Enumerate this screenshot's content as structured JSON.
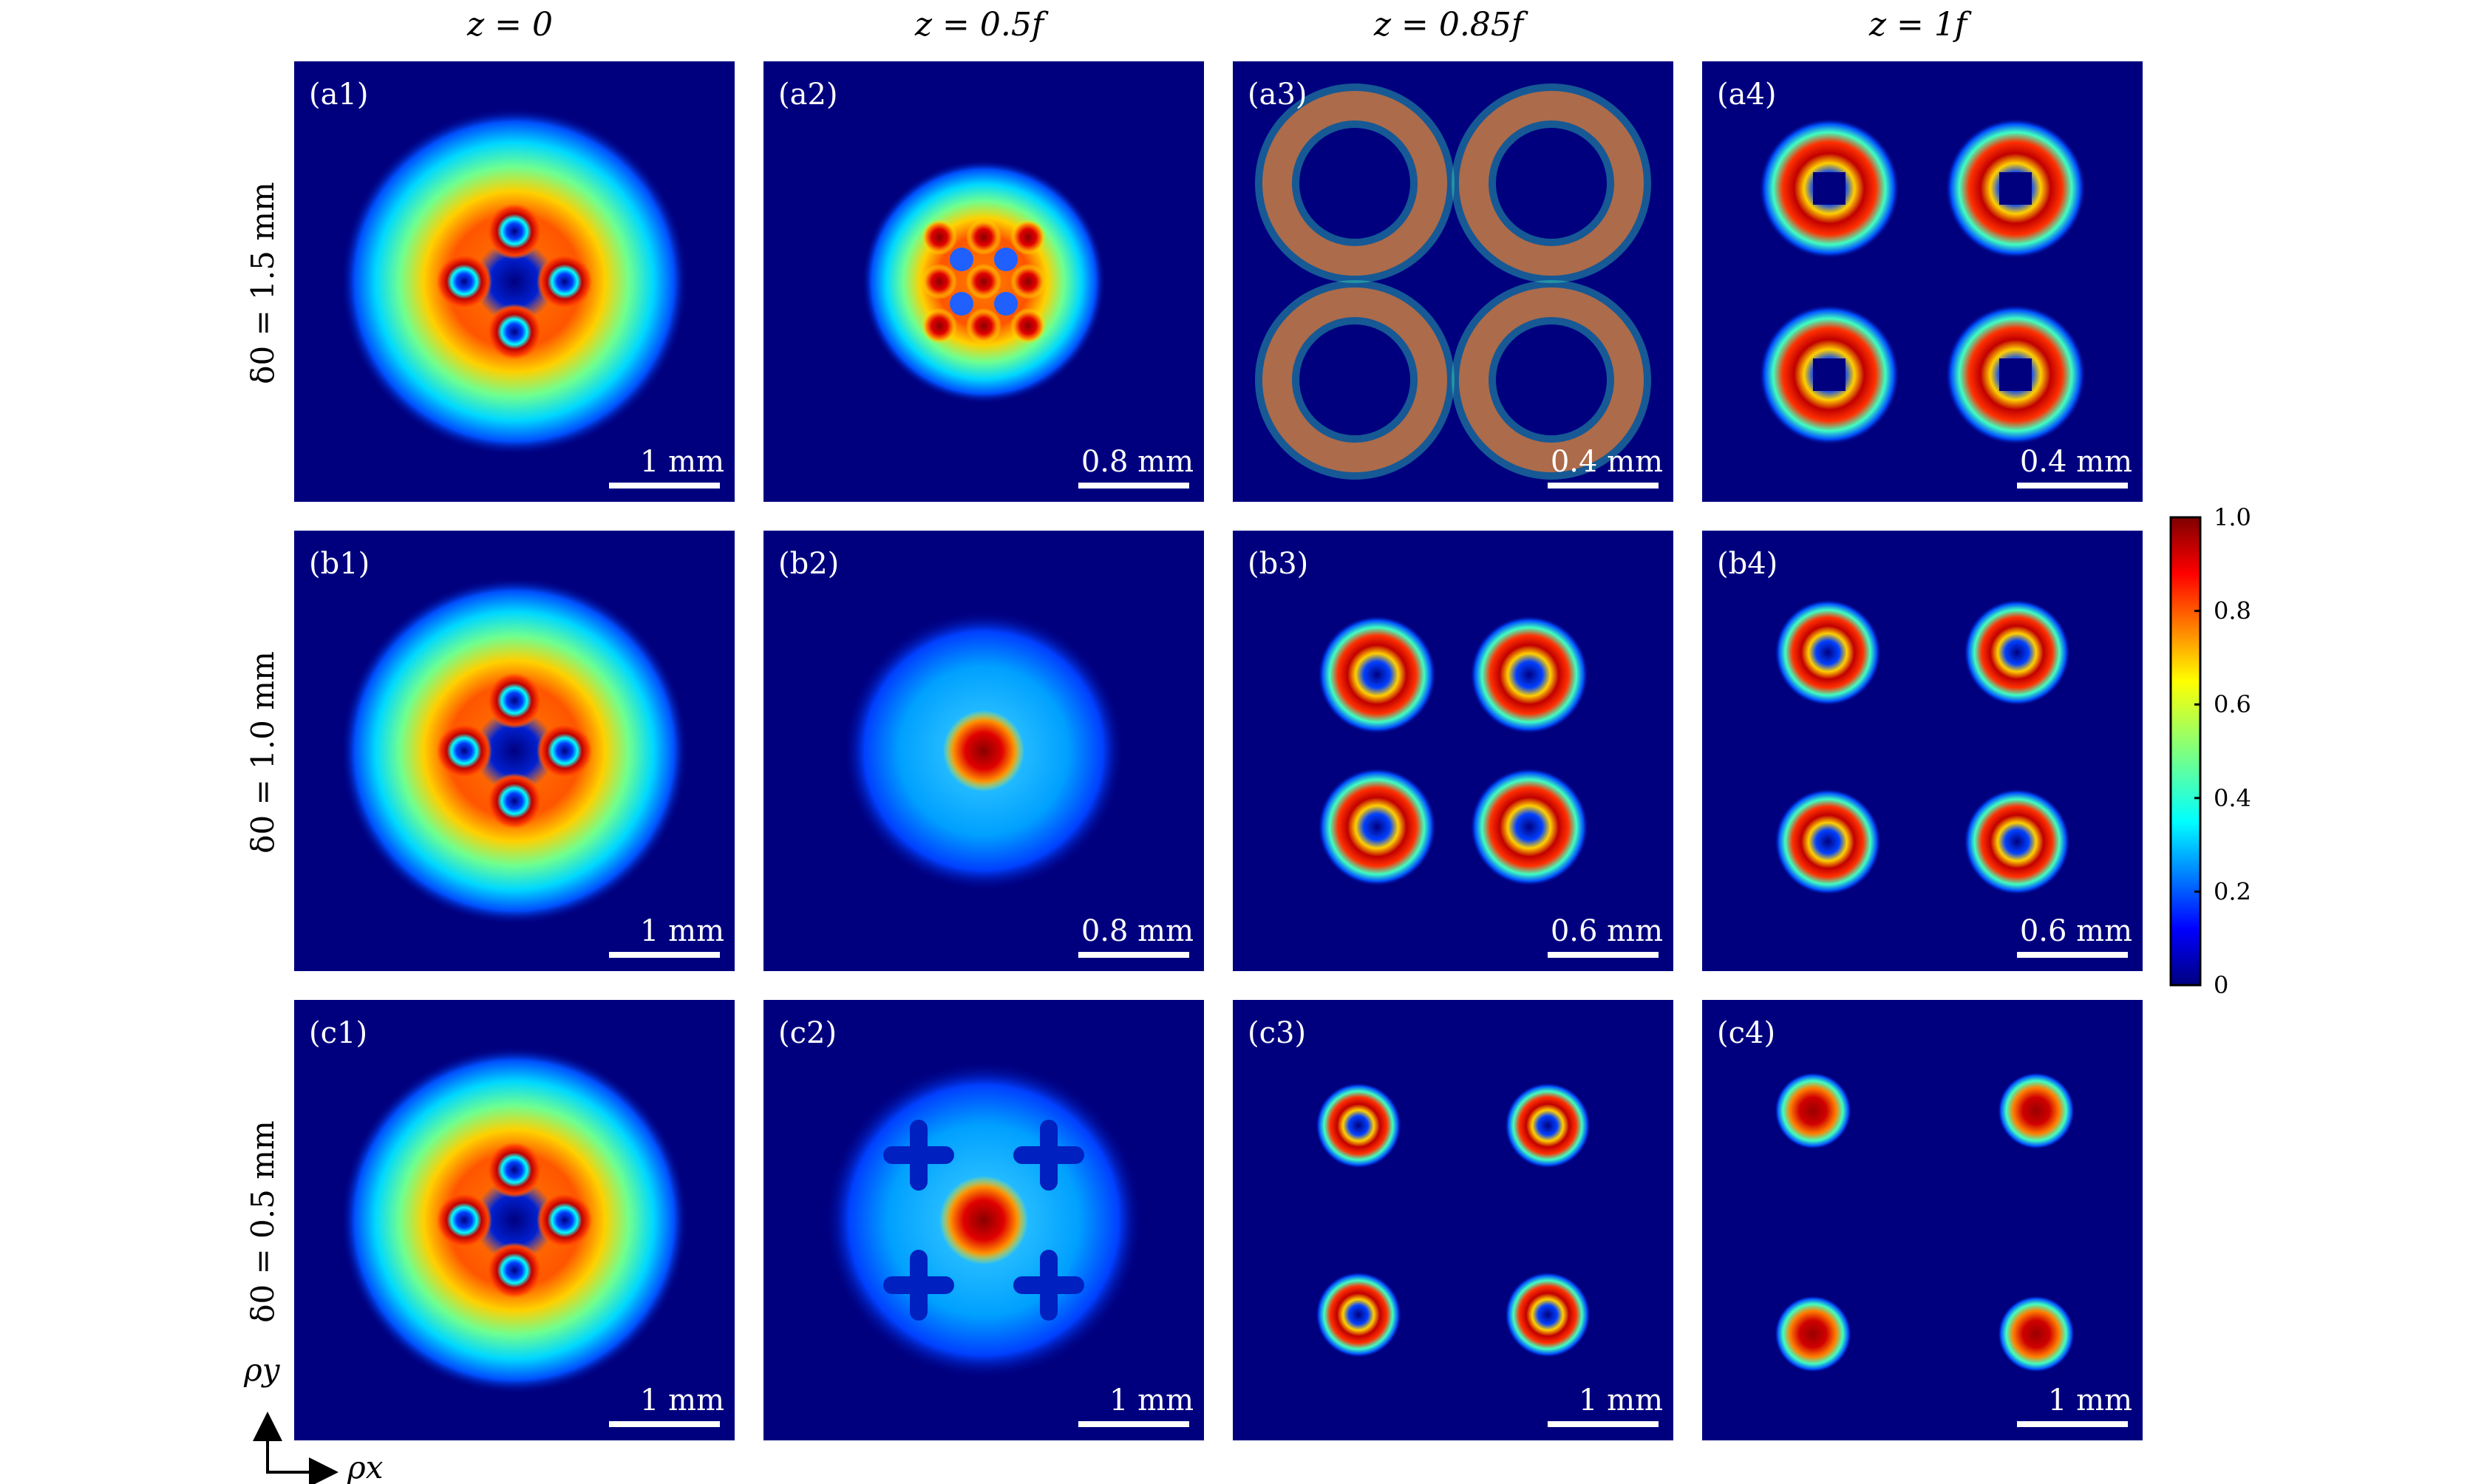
{
  "figure": {
    "column_headers": [
      "z = 0",
      "z = 0.5f",
      "z = 0.85f",
      "z = 1f"
    ],
    "row_labels": [
      "δ0 = 1.5 mm",
      "δ0 = 1.0 mm",
      "δ0 = 0.5 mm"
    ],
    "axis_labels": {
      "x": "ρx",
      "y": "ρy"
    },
    "colorbar": {
      "ticks": [
        "1.0",
        "0.8",
        "0.6",
        "0.4",
        "0.2",
        "0"
      ],
      "colormap": "jet",
      "colors": [
        "#00007f",
        "#0000ff",
        "#007fff",
        "#00ffff",
        "#7fff7f",
        "#ffff00",
        "#ff7f00",
        "#ff0000",
        "#7f0000"
      ]
    },
    "background_color": "#00007f"
  },
  "chart_data": [
    {
      "type": "heatmap",
      "panel": "(a1)",
      "row": 0,
      "col": 0,
      "scalebar": "1 mm",
      "pattern": "ring-4-vortices"
    },
    {
      "type": "heatmap",
      "panel": "(a2)",
      "row": 0,
      "col": 1,
      "scalebar": "0.8 mm",
      "pattern": "disk-lattice"
    },
    {
      "type": "heatmap",
      "panel": "(a3)",
      "row": 0,
      "col": 2,
      "scalebar": "0.4 mm",
      "pattern": "four-overlapping-rings"
    },
    {
      "type": "heatmap",
      "panel": "(a4)",
      "row": 0,
      "col": 3,
      "scalebar": "0.4 mm",
      "pattern": "four-square-rings"
    },
    {
      "type": "heatmap",
      "panel": "(b1)",
      "row": 1,
      "col": 0,
      "scalebar": "1 mm",
      "pattern": "ring-4-vortices"
    },
    {
      "type": "heatmap",
      "panel": "(b2)",
      "row": 1,
      "col": 1,
      "scalebar": "0.8 mm",
      "pattern": "diffuse-disk-center-peak"
    },
    {
      "type": "heatmap",
      "panel": "(b3)",
      "row": 1,
      "col": 2,
      "scalebar": "0.6 mm",
      "pattern": "four-separate-rings"
    },
    {
      "type": "heatmap",
      "panel": "(b4)",
      "row": 1,
      "col": 3,
      "scalebar": "0.6 mm",
      "pattern": "four-small-rings"
    },
    {
      "type": "heatmap",
      "panel": "(c1)",
      "row": 2,
      "col": 0,
      "scalebar": "1 mm",
      "pattern": "ring-4-vortices"
    },
    {
      "type": "heatmap",
      "panel": "(c2)",
      "row": 2,
      "col": 1,
      "scalebar": "1 mm",
      "pattern": "four-crosses"
    },
    {
      "type": "heatmap",
      "panel": "(c3)",
      "row": 2,
      "col": 2,
      "scalebar": "1 mm",
      "pattern": "four-small-rings-wide"
    },
    {
      "type": "heatmap",
      "panel": "(c4)",
      "row": 2,
      "col": 3,
      "scalebar": "1 mm",
      "pattern": "four-spots-wide"
    }
  ]
}
